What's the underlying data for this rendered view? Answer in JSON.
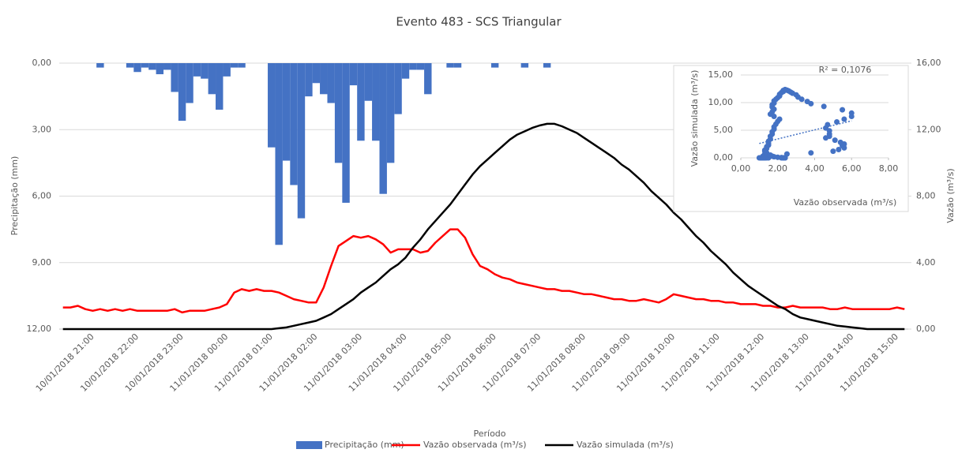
{
  "chart_data": [
    {
      "type": "combo",
      "title": "Evento 483 - SCS Triangular",
      "x_label": "Período",
      "y_label": "Precipitação (mm)",
      "y2_label": "Vazão (m³/s)",
      "y_inverted": true,
      "grid": true,
      "ylim": [
        0,
        12
      ],
      "yticks": [
        {
          "value": 0,
          "label": "0,00"
        },
        {
          "value": 3,
          "label": "3,00"
        },
        {
          "value": 6,
          "label": "6,00"
        },
        {
          "value": 9,
          "label": "9,00"
        },
        {
          "value": 12,
          "label": "12,00"
        }
      ],
      "y2lim": [
        0,
        16
      ],
      "y2ticks": [
        {
          "value": 0,
          "label": "0,00"
        },
        {
          "value": 4,
          "label": "4,00"
        },
        {
          "value": 8,
          "label": "8,00"
        },
        {
          "value": 12,
          "label": "12,00"
        },
        {
          "value": 16,
          "label": "16,00"
        }
      ],
      "categories": [
        null,
        null,
        null,
        null,
        "10/01/2018 21:00",
        null,
        null,
        null,
        null,
        null,
        "10/01/2018 22:00",
        null,
        null,
        null,
        null,
        null,
        "10/01/2018 23:00",
        null,
        null,
        null,
        null,
        null,
        "11/01/2018 00:00",
        null,
        null,
        null,
        null,
        null,
        "11/01/2018 01:00",
        null,
        null,
        null,
        null,
        null,
        "11/01/2018 02:00",
        null,
        null,
        null,
        null,
        null,
        "11/01/2018 03:00",
        null,
        null,
        null,
        null,
        null,
        "11/01/2018 04:00",
        null,
        null,
        null,
        null,
        null,
        "11/01/2018 05:00",
        null,
        null,
        null,
        null,
        null,
        "11/01/2018 06:00",
        null,
        null,
        null,
        null,
        null,
        "11/01/2018 07:00",
        null,
        null,
        null,
        null,
        null,
        "11/01/2018 08:00",
        null,
        null,
        null,
        null,
        null,
        "11/01/2018 09:00",
        null,
        null,
        null,
        null,
        null,
        "11/01/2018 10:00",
        null,
        null,
        null,
        null,
        null,
        "11/01/2018 11:00",
        null,
        null,
        null,
        null,
        null,
        "11/01/2018 12:00",
        null,
        null,
        null,
        null,
        null,
        "11/01/2018 13:00",
        null,
        null,
        null,
        null,
        null,
        "11/01/2018 14:00",
        null,
        null,
        null,
        null,
        null,
        "11/01/2018 15:00",
        null
      ],
      "series": [
        {
          "name": "Precipitação (mm)",
          "type": "bar",
          "axis": "y",
          "color": "#4472c4",
          "values": [
            0,
            0,
            0,
            0,
            0,
            0.2,
            0,
            0,
            0,
            0.2,
            0.4,
            0.2,
            0.3,
            0.5,
            0.3,
            1.3,
            2.6,
            1.8,
            0.6,
            0.7,
            1.4,
            2.1,
            0.6,
            0.2,
            0.2,
            0,
            0,
            0,
            3.8,
            8.2,
            4.4,
            5.5,
            7.0,
            1.5,
            0.9,
            1.4,
            1.8,
            4.5,
            6.3,
            1.0,
            3.5,
            1.7,
            3.5,
            5.9,
            4.5,
            2.3,
            0.7,
            0.3,
            0.3,
            1.4,
            0,
            0,
            0.2,
            0.2,
            0,
            0,
            0,
            0,
            0.2,
            0,
            0,
            0,
            0.2,
            0,
            0,
            0.2,
            0,
            0,
            0,
            0,
            0,
            0,
            0,
            0,
            0,
            0,
            0,
            0,
            0,
            0,
            0,
            0,
            0,
            0,
            0,
            0,
            0,
            0,
            0,
            0,
            0,
            0,
            0,
            0,
            0,
            0,
            0,
            0,
            0,
            0,
            0,
            0,
            0,
            0,
            0,
            0,
            0,
            0,
            0,
            0,
            0,
            0,
            0,
            0
          ]
        },
        {
          "name": "Vazão observada (m³/s)",
          "type": "line",
          "axis": "y2",
          "color": "#ff0000",
          "values": [
            1.3,
            1.3,
            1.4,
            1.2,
            1.1,
            1.2,
            1.1,
            1.2,
            1.1,
            1.2,
            1.1,
            1.1,
            1.1,
            1.1,
            1.1,
            1.2,
            1.0,
            1.1,
            1.1,
            1.1,
            1.2,
            1.3,
            1.5,
            2.2,
            2.4,
            2.3,
            2.4,
            2.3,
            2.3,
            2.2,
            2.0,
            1.8,
            1.7,
            1.6,
            1.6,
            2.5,
            3.8,
            5.0,
            5.3,
            5.6,
            5.5,
            5.6,
            5.4,
            5.1,
            4.6,
            4.8,
            4.8,
            4.8,
            4.6,
            4.7,
            5.2,
            5.6,
            6.0,
            6.0,
            5.5,
            4.5,
            3.8,
            3.6,
            3.3,
            3.1,
            3.0,
            2.8,
            2.7,
            2.6,
            2.5,
            2.4,
            2.4,
            2.3,
            2.3,
            2.2,
            2.1,
            2.1,
            2.0,
            1.9,
            1.8,
            1.8,
            1.7,
            1.7,
            1.8,
            1.7,
            1.6,
            1.8,
            2.1,
            2.0,
            1.9,
            1.8,
            1.8,
            1.7,
            1.7,
            1.6,
            1.6,
            1.5,
            1.5,
            1.5,
            1.4,
            1.4,
            1.3,
            1.3,
            1.4,
            1.3,
            1.3,
            1.3,
            1.3,
            1.2,
            1.2,
            1.3,
            1.2,
            1.2,
            1.2,
            1.2,
            1.2,
            1.2,
            1.3,
            1.2
          ]
        },
        {
          "name": "Vazão simulada (m³/s)",
          "type": "line",
          "axis": "y2",
          "color": "#000000",
          "values": [
            0,
            0,
            0,
            0,
            0,
            0,
            0,
            0,
            0,
            0,
            0,
            0,
            0,
            0,
            0,
            0,
            0,
            0,
            0,
            0,
            0,
            0,
            0,
            0,
            0,
            0,
            0,
            0,
            0,
            0.05,
            0.1,
            0.2,
            0.3,
            0.4,
            0.5,
            0.7,
            0.9,
            1.2,
            1.5,
            1.8,
            2.2,
            2.5,
            2.8,
            3.2,
            3.6,
            3.9,
            4.3,
            4.9,
            5.4,
            6.0,
            6.5,
            7.0,
            7.5,
            8.1,
            8.7,
            9.3,
            9.8,
            10.2,
            10.6,
            11.0,
            11.4,
            11.7,
            11.9,
            12.1,
            12.25,
            12.35,
            12.35,
            12.2,
            12.0,
            11.8,
            11.5,
            11.2,
            10.9,
            10.6,
            10.3,
            9.9,
            9.6,
            9.2,
            8.8,
            8.3,
            7.9,
            7.5,
            7.0,
            6.6,
            6.1,
            5.6,
            5.2,
            4.7,
            4.3,
            3.9,
            3.4,
            3.0,
            2.6,
            2.3,
            2.0,
            1.7,
            1.4,
            1.2,
            0.9,
            0.7,
            0.6,
            0.5,
            0.4,
            0.3,
            0.2,
            0.15,
            0.1,
            0.05,
            0,
            0,
            0,
            0,
            0,
            0
          ]
        }
      ]
    },
    {
      "type": "scatter",
      "x_label": "Vazão observada (m³/s)",
      "y_label": "Vazão simulada (m³/s)",
      "annotation": "R² = 0,1076",
      "color": "#4472c4",
      "grid": true,
      "xlim": [
        0,
        8
      ],
      "ylim": [
        0,
        15
      ],
      "xticks": [
        {
          "value": 0,
          "label": "0,00"
        },
        {
          "value": 2,
          "label": "2,00"
        },
        {
          "value": 4,
          "label": "4,00"
        },
        {
          "value": 6,
          "label": "6,00"
        },
        {
          "value": 8,
          "label": "8,00"
        }
      ],
      "yticks": [
        {
          "value": 0,
          "label": "0,00"
        },
        {
          "value": 5,
          "label": "5,00"
        },
        {
          "value": 10,
          "label": "10,00"
        },
        {
          "value": 15,
          "label": "15,00"
        }
      ],
      "trendline": {
        "x": [
          1.0,
          6.0
        ],
        "y": [
          2.6,
          6.7
        ]
      }
    }
  ]
}
